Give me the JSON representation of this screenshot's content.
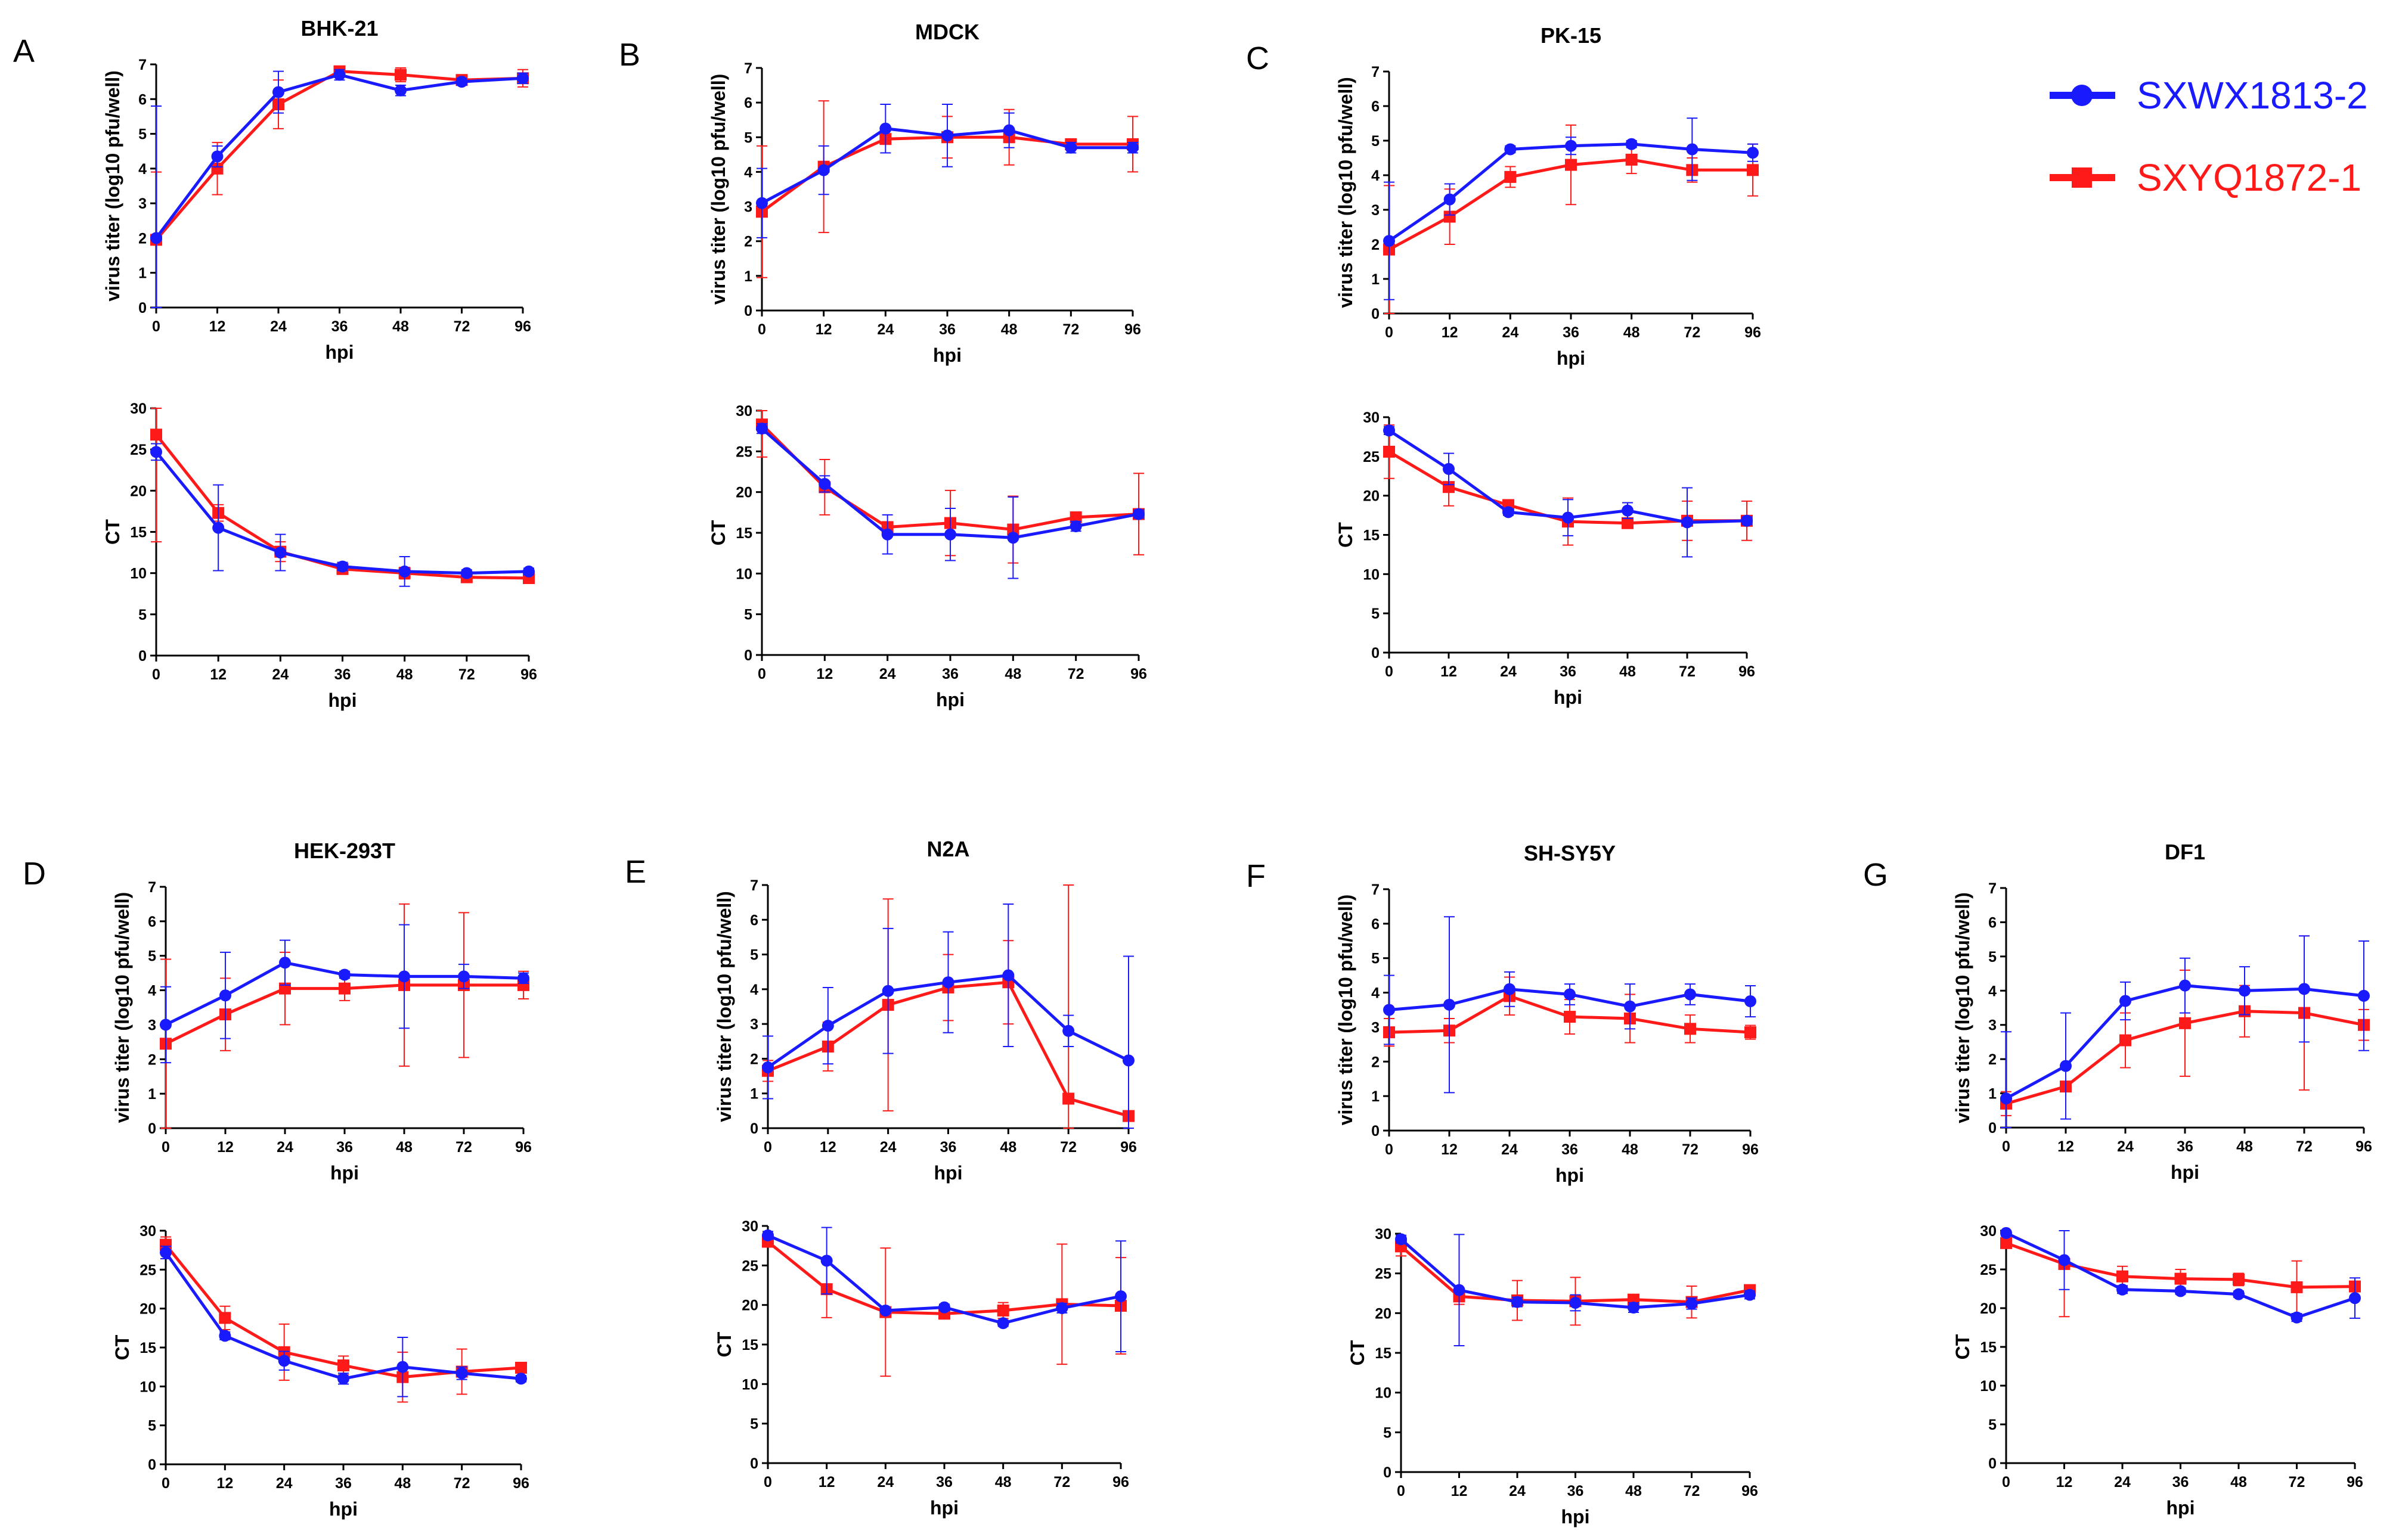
{
  "figure": {
    "legend": [
      {
        "name": "SXWX1813-2",
        "color": "#1a1aff",
        "marker": "circle"
      },
      {
        "name": "SXYQ1872-1",
        "color": "#ff1a1a",
        "marker": "square"
      }
    ]
  },
  "chart_data": [
    {
      "type": "line",
      "panel_letter": "A",
      "title": "BHK-21",
      "xlabel": "hpi",
      "ylabel": "virus titer (log10 pfu/well)",
      "categories": [
        "0",
        "12",
        "24",
        "36",
        "48",
        "72",
        "96"
      ],
      "ylim": [
        0,
        7
      ],
      "yticks": [
        0,
        1,
        2,
        3,
        4,
        5,
        6,
        7
      ],
      "series": [
        {
          "name": "SXWX1813-2",
          "values": [
            2.0,
            4.35,
            6.2,
            6.7,
            6.25,
            6.5,
            6.6
          ],
          "err": [
            3.8,
            0.3,
            0.6,
            0.15,
            0.15,
            0.1,
            0.15
          ]
        },
        {
          "name": "SXYQ1872-1",
          "values": [
            1.95,
            4.0,
            5.85,
            6.8,
            6.7,
            6.55,
            6.6
          ],
          "err": [
            1.95,
            0.75,
            0.7,
            0.1,
            0.2,
            0.1,
            0.25
          ]
        }
      ]
    },
    {
      "type": "line",
      "panel_letter": "",
      "title": "",
      "xlabel": "hpi",
      "ylabel": "CT",
      "categories": [
        "0",
        "12",
        "24",
        "36",
        "48",
        "72",
        "96"
      ],
      "ylim": [
        0,
        30
      ],
      "yticks": [
        0,
        5,
        10,
        15,
        20,
        25,
        30
      ],
      "series": [
        {
          "name": "SXWX1813-2",
          "values": [
            24.7,
            15.5,
            12.5,
            10.8,
            10.2,
            10.0,
            10.2
          ],
          "err": [
            1.0,
            5.2,
            2.2,
            0.5,
            1.8,
            0.4,
            0.4
          ]
        },
        {
          "name": "SXYQ1872-1",
          "values": [
            26.8,
            17.3,
            12.6,
            10.5,
            10.0,
            9.5,
            9.4
          ],
          "err": [
            13.0,
            1.0,
            1.2,
            0.5,
            0.7,
            0.4,
            0.4
          ]
        }
      ]
    },
    {
      "type": "line",
      "panel_letter": "B",
      "title": "MDCK",
      "xlabel": "hpi",
      "ylabel": "virus titer (log10 pfu/well)",
      "categories": [
        "0",
        "12",
        "24",
        "36",
        "48",
        "72",
        "96"
      ],
      "ylim": [
        0,
        7
      ],
      "yticks": [
        0,
        1,
        2,
        3,
        4,
        5,
        6,
        7
      ],
      "series": [
        {
          "name": "SXWX1813-2",
          "values": [
            3.1,
            4.05,
            5.25,
            5.05,
            5.2,
            4.7,
            4.7
          ],
          "err": [
            1.0,
            0.7,
            0.7,
            0.9,
            0.5,
            0.15,
            0.15
          ]
        },
        {
          "name": "SXYQ1872-1",
          "values": [
            2.85,
            4.15,
            4.95,
            5.0,
            5.0,
            4.8,
            4.8
          ],
          "err": [
            1.9,
            1.9,
            0.15,
            0.6,
            0.8,
            0.1,
            0.8
          ]
        }
      ]
    },
    {
      "type": "line",
      "panel_letter": "",
      "title": "",
      "xlabel": "hpi",
      "ylabel": "CT",
      "categories": [
        "0",
        "12",
        "24",
        "36",
        "48",
        "72",
        "96"
      ],
      "ylim": [
        0,
        30
      ],
      "yticks": [
        0,
        5,
        10,
        15,
        20,
        25,
        30
      ],
      "series": [
        {
          "name": "SXWX1813-2",
          "values": [
            27.8,
            21.0,
            14.8,
            14.8,
            14.4,
            15.8,
            17.3
          ],
          "err": [
            0.6,
            1.0,
            2.4,
            3.2,
            5.0,
            0.6,
            0.5
          ]
        },
        {
          "name": "SXYQ1872-1",
          "values": [
            28.3,
            20.6,
            15.7,
            16.2,
            15.4,
            16.9,
            17.3
          ],
          "err": [
            4.0,
            3.4,
            0.5,
            4.0,
            4.1,
            0.4,
            5.0
          ]
        }
      ]
    },
    {
      "type": "line",
      "panel_letter": "C",
      "title": "PK-15",
      "xlabel": "hpi",
      "ylabel": "virus titer (log10 pfu/well)",
      "categories": [
        "0",
        "12",
        "24",
        "36",
        "48",
        "72",
        "96"
      ],
      "ylim": [
        0,
        7
      ],
      "yticks": [
        0,
        1,
        2,
        3,
        4,
        5,
        6,
        7
      ],
      "series": [
        {
          "name": "SXWX1813-2",
          "values": [
            2.1,
            3.3,
            4.75,
            4.85,
            4.9,
            4.75,
            4.65
          ],
          "err": [
            1.7,
            0.45,
            0.1,
            0.25,
            0.1,
            0.9,
            0.25
          ]
        },
        {
          "name": "SXYQ1872-1",
          "values": [
            1.85,
            2.8,
            3.95,
            4.3,
            4.45,
            4.15,
            4.15
          ],
          "err": [
            1.85,
            0.8,
            0.3,
            1.15,
            0.4,
            0.35,
            0.75
          ]
        }
      ]
    },
    {
      "type": "line",
      "panel_letter": "",
      "title": "",
      "xlabel": "hpi",
      "ylabel": "CT",
      "categories": [
        "0",
        "12",
        "24",
        "36",
        "48",
        "72",
        "96"
      ],
      "ylim": [
        0,
        30
      ],
      "yticks": [
        0,
        5,
        10,
        15,
        20,
        25,
        30
      ],
      "series": [
        {
          "name": "SXWX1813-2",
          "values": [
            28.3,
            23.4,
            17.9,
            17.2,
            18.1,
            16.6,
            16.8
          ],
          "err": [
            0.5,
            2.0,
            0.4,
            2.3,
            1.0,
            4.4,
            0.5
          ]
        },
        {
          "name": "SXYQ1872-1",
          "values": [
            25.6,
            21.1,
            18.8,
            16.7,
            16.5,
            16.8,
            16.8
          ],
          "err": [
            3.4,
            2.4,
            0.5,
            3.0,
            0.6,
            2.5,
            2.5
          ]
        }
      ]
    },
    {
      "type": "line",
      "panel_letter": "D",
      "title": "HEK-293T",
      "xlabel": "hpi",
      "ylabel": "virus titer (log10 pfu/well)",
      "categories": [
        "0",
        "12",
        "24",
        "36",
        "48",
        "72",
        "96"
      ],
      "ylim": [
        0,
        7
      ],
      "yticks": [
        0,
        1,
        2,
        3,
        4,
        5,
        6,
        7
      ],
      "series": [
        {
          "name": "SXWX1813-2",
          "values": [
            3.0,
            3.85,
            4.8,
            4.45,
            4.4,
            4.4,
            4.35
          ],
          "err": [
            1.1,
            1.25,
            0.65,
            0.1,
            1.5,
            0.35,
            0.15
          ]
        },
        {
          "name": "SXYQ1872-1",
          "values": [
            2.45,
            3.3,
            4.05,
            4.05,
            4.15,
            4.15,
            4.15
          ],
          "err": [
            2.45,
            1.05,
            1.05,
            0.35,
            2.35,
            2.1,
            0.4
          ]
        }
      ]
    },
    {
      "type": "line",
      "panel_letter": "",
      "title": "",
      "xlabel": "hpi",
      "ylabel": "CT",
      "categories": [
        "0",
        "12",
        "24",
        "36",
        "48",
        "72",
        "96"
      ],
      "ylim": [
        0,
        30
      ],
      "yticks": [
        0,
        5,
        10,
        15,
        20,
        25,
        30
      ],
      "series": [
        {
          "name": "SXWX1813-2",
          "values": [
            27.2,
            16.5,
            13.3,
            11.0,
            12.5,
            11.7,
            11.0
          ],
          "err": [
            0.8,
            0.5,
            1.2,
            0.7,
            3.8,
            0.8,
            0.4
          ]
        },
        {
          "name": "SXYQ1872-1",
          "values": [
            28.2,
            18.8,
            14.4,
            12.7,
            11.2,
            11.9,
            12.4
          ],
          "err": [
            1.0,
            1.5,
            3.6,
            1.2,
            3.2,
            2.9,
            0.5
          ]
        }
      ]
    },
    {
      "type": "line",
      "panel_letter": "E",
      "title": "N2A",
      "xlabel": "hpi",
      "ylabel": "virus titer (log10 pfu/well)",
      "categories": [
        "0",
        "12",
        "24",
        "36",
        "48",
        "72",
        "96"
      ],
      "ylim": [
        0,
        7
      ],
      "yticks": [
        0,
        1,
        2,
        3,
        4,
        5,
        6,
        7
      ],
      "series": [
        {
          "name": "SXWX1813-2",
          "values": [
            1.75,
            2.95,
            3.95,
            4.2,
            4.4,
            2.8,
            1.95
          ],
          "err": [
            0.9,
            1.1,
            1.8,
            1.45,
            2.05,
            0.45,
            3.0
          ]
        },
        {
          "name": "SXYQ1872-1",
          "values": [
            1.65,
            2.35,
            3.55,
            4.05,
            4.2,
            0.85,
            0.35
          ],
          "err": [
            0.3,
            0.7,
            3.05,
            0.95,
            1.2,
            6.15,
            4.6
          ]
        }
      ]
    },
    {
      "type": "line",
      "panel_letter": "",
      "title": "",
      "xlabel": "hpi",
      "ylabel": "CT",
      "categories": [
        "0",
        "12",
        "24",
        "36",
        "48",
        "72",
        "96"
      ],
      "ylim": [
        0,
        30
      ],
      "yticks": [
        0,
        5,
        10,
        15,
        20,
        25,
        30
      ],
      "series": [
        {
          "name": "SXWX1813-2",
          "values": [
            28.8,
            25.6,
            19.3,
            19.7,
            17.7,
            19.6,
            21.1
          ],
          "err": [
            0.5,
            4.2,
            0.3,
            0.4,
            0.4,
            0.6,
            7.0
          ]
        },
        {
          "name": "SXYQ1872-1",
          "values": [
            28.0,
            22.0,
            19.1,
            18.9,
            19.3,
            20.1,
            19.9
          ],
          "err": [
            0.5,
            3.6,
            8.1,
            0.4,
            1.0,
            7.6,
            6.1
          ]
        }
      ]
    },
    {
      "type": "line",
      "panel_letter": "F",
      "title": "SH-SY5Y",
      "xlabel": "hpi",
      "ylabel": "virus titer (log10 pfu/well)",
      "categories": [
        "0",
        "12",
        "24",
        "36",
        "48",
        "72",
        "96"
      ],
      "ylim": [
        0,
        7
      ],
      "yticks": [
        0,
        1,
        2,
        3,
        4,
        5,
        6,
        7
      ],
      "series": [
        {
          "name": "SXWX1813-2",
          "values": [
            3.5,
            3.65,
            4.1,
            3.95,
            3.6,
            3.95,
            3.75
          ],
          "err": [
            1.0,
            2.55,
            0.5,
            0.3,
            0.65,
            0.3,
            0.45
          ]
        },
        {
          "name": "SXYQ1872-1",
          "values": [
            2.85,
            2.9,
            3.9,
            3.3,
            3.25,
            2.95,
            2.85
          ],
          "err": [
            0.4,
            0.35,
            0.55,
            0.5,
            0.7,
            0.4,
            0.2
          ]
        }
      ]
    },
    {
      "type": "line",
      "panel_letter": "",
      "title": "",
      "xlabel": "hpi",
      "ylabel": "CT",
      "categories": [
        "0",
        "12",
        "24",
        "36",
        "48",
        "72",
        "96"
      ],
      "ylim": [
        0,
        30
      ],
      "yticks": [
        0,
        5,
        10,
        15,
        20,
        25,
        30
      ],
      "series": [
        {
          "name": "SXWX1813-2",
          "values": [
            29.3,
            22.9,
            21.4,
            21.3,
            20.7,
            21.2,
            22.3
          ],
          "err": [
            0.5,
            7.0,
            0.6,
            1.0,
            0.6,
            0.7,
            0.5
          ]
        },
        {
          "name": "SXYQ1872-1",
          "values": [
            28.4,
            22.1,
            21.6,
            21.5,
            21.7,
            21.4,
            22.9
          ],
          "err": [
            1.2,
            1.0,
            2.5,
            3.0,
            0.6,
            2.0,
            0.4
          ]
        }
      ]
    },
    {
      "type": "line",
      "panel_letter": "G",
      "title": "DF1",
      "xlabel": "hpi",
      "ylabel": "virus titer (log10 pfu/well)",
      "categories": [
        "0",
        "12",
        "24",
        "36",
        "48",
        "72",
        "96"
      ],
      "ylim": [
        0,
        7
      ],
      "yticks": [
        0,
        1,
        2,
        3,
        4,
        5,
        6,
        7
      ],
      "series": [
        {
          "name": "SXWX1813-2",
          "values": [
            0.85,
            1.8,
            3.7,
            4.15,
            4.0,
            4.05,
            3.85
          ],
          "err": [
            1.95,
            1.55,
            0.55,
            0.8,
            0.7,
            1.55,
            1.6
          ]
        },
        {
          "name": "SXYQ1872-1",
          "values": [
            0.7,
            1.2,
            2.55,
            3.05,
            3.4,
            3.35,
            3.0
          ],
          "err": [
            0.35,
            0.1,
            0.8,
            1.55,
            0.75,
            2.25,
            0.45
          ]
        }
      ]
    },
    {
      "type": "line",
      "panel_letter": "",
      "title": "",
      "xlabel": "hpi",
      "ylabel": "CT",
      "categories": [
        "0",
        "12",
        "24",
        "36",
        "48",
        "72",
        "96"
      ],
      "ylim": [
        0,
        30
      ],
      "yticks": [
        0,
        5,
        10,
        15,
        20,
        25,
        30
      ],
      "series": [
        {
          "name": "SXWX1813-2",
          "values": [
            29.7,
            26.2,
            22.4,
            22.2,
            21.8,
            18.8,
            21.3
          ],
          "err": [
            0.4,
            3.8,
            0.5,
            0.4,
            0.4,
            0.5,
            2.6
          ]
        },
        {
          "name": "SXYQ1872-1",
          "values": [
            28.4,
            25.7,
            24.1,
            23.8,
            23.7,
            22.7,
            22.8
          ],
          "err": [
            0.6,
            6.8,
            1.3,
            1.2,
            0.8,
            3.4,
            0.5
          ]
        }
      ]
    }
  ]
}
